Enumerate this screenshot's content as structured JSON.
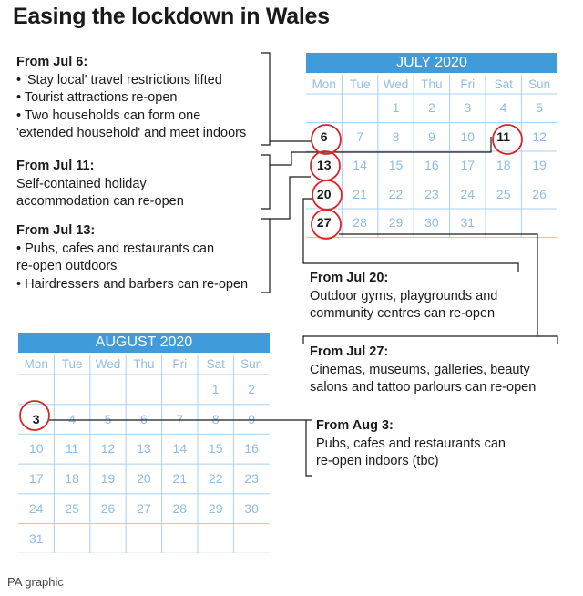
{
  "title": "Easing the lockdown in Wales",
  "footer": "PA graphic",
  "colors": {
    "accent": "#3f9bd9",
    "grid": "#a9d0ef",
    "circle": "#d9262a",
    "muted_text": "#8fbde6"
  },
  "calendars": {
    "july": {
      "title": "JULY 2020",
      "days": [
        "Mon",
        "Tue",
        "Wed",
        "Thu",
        "Fri",
        "Sat",
        "Sun"
      ],
      "weeks": [
        [
          "",
          "",
          "1",
          "2",
          "3",
          "4",
          "5"
        ],
        [
          "6",
          "7",
          "8",
          "9",
          "10",
          "11",
          "12"
        ],
        [
          "13",
          "14",
          "15",
          "16",
          "17",
          "18",
          "19"
        ],
        [
          "20",
          "21",
          "22",
          "23",
          "24",
          "25",
          "26"
        ],
        [
          "27",
          "28",
          "29",
          "30",
          "31",
          "",
          ""
        ]
      ],
      "highlighted": [
        "6",
        "11",
        "13",
        "20",
        "27"
      ]
    },
    "august": {
      "title": "AUGUST 2020",
      "days": [
        "Mon",
        "Tue",
        "Wed",
        "Thu",
        "Fri",
        "Sat",
        "Sun"
      ],
      "weeks": [
        [
          "",
          "",
          "",
          "",
          "",
          "1",
          "2"
        ],
        [
          "3",
          "4",
          "5",
          "6",
          "7",
          "8",
          "9"
        ],
        [
          "10",
          "11",
          "12",
          "13",
          "14",
          "15",
          "16"
        ],
        [
          "17",
          "18",
          "19",
          "20",
          "21",
          "22",
          "23"
        ],
        [
          "24",
          "25",
          "26",
          "27",
          "28",
          "29",
          "30"
        ],
        [
          "31",
          "",
          "",
          "",
          "",
          "",
          ""
        ]
      ],
      "highlighted": [
        "3"
      ]
    }
  },
  "notes": {
    "jul6": {
      "heading": "From Jul 6:",
      "lines": [
        "• 'Stay local' travel restrictions lifted",
        "• Tourist attractions re-open",
        "• Two households can form one",
        "'extended household' and meet indoors"
      ]
    },
    "jul11": {
      "heading": "From Jul 11:",
      "lines": [
        "Self-contained holiday",
        "accommodation can re-open"
      ]
    },
    "jul13": {
      "heading": "From Jul 13:",
      "lines": [
        "• Pubs, cafes and restaurants can",
        "re-open outdoors",
        "• Hairdressers and barbers can re-open"
      ]
    },
    "jul20": {
      "heading": "From Jul 20:",
      "lines": [
        "Outdoor gyms, playgrounds and",
        "community centres can re-open"
      ]
    },
    "jul27": {
      "heading": "From Jul 27:",
      "lines": [
        "Cinemas, museums, galleries, beauty",
        "salons and tattoo parlours can re-open"
      ]
    },
    "aug3": {
      "heading": "From Aug 3:",
      "lines": [
        "Pubs, cafes and restaurants can",
        "re-open indoors (tbc)"
      ]
    }
  }
}
